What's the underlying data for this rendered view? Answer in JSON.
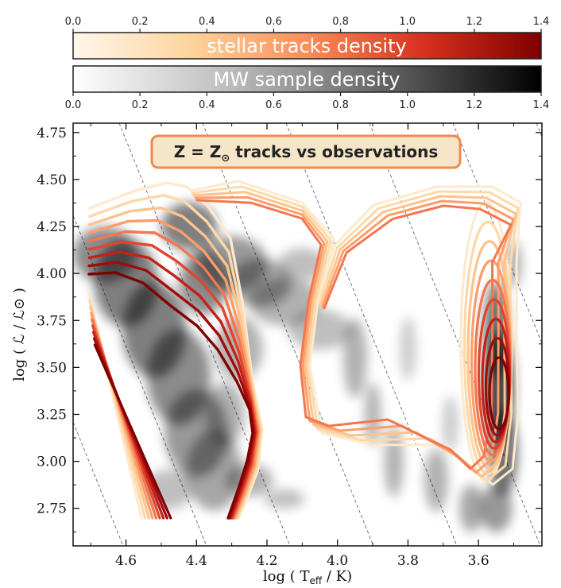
{
  "chart_data": {
    "type": "heatmap",
    "title": "Z = Z⊙ tracks vs observations",
    "annotation": {
      "main": "Z = Z",
      "sub": "⊙",
      "rest": " tracks vs observations",
      "box_color": "#f5e6c9",
      "edge_color": "#f08a4b"
    },
    "xlabel": {
      "pre": "log ( T",
      "sub": "eff",
      "post": " / K)"
    },
    "ylabel": "log ( ℒ / ℒ⊙ )",
    "xlim": [
      4.75,
      3.42
    ],
    "ylim": [
      2.55,
      4.8
    ],
    "x_ticks": [
      "4.6",
      "4.4",
      "4.2",
      "4.0",
      "3.8",
      "3.6"
    ],
    "y_ticks": [
      "2.75",
      "3.00",
      "3.25",
      "3.50",
      "3.75",
      "4.00",
      "4.25",
      "4.50",
      "4.75"
    ],
    "colorbars": [
      {
        "label": "stellar tracks density",
        "range": [
          0,
          1.4
        ],
        "ticks": [
          "0.0",
          "0.2",
          "0.4",
          "0.6",
          "0.8",
          "1.0",
          "1.2",
          "1.4"
        ],
        "colors": [
          "#fff7ec",
          "#fdd49e",
          "#fc8d59",
          "#d7301f",
          "#7f0000"
        ]
      },
      {
        "label": "MW sample density",
        "range": [
          0,
          1.4
        ],
        "ticks": [
          "0.0",
          "0.2",
          "0.4",
          "0.6",
          "0.8",
          "1.0",
          "1.2",
          "1.4"
        ],
        "colors": [
          "#ffffff",
          "#bdbdbd",
          "#636363",
          "#000000"
        ]
      }
    ],
    "contour_levels": [
      {
        "level": 0.1,
        "color": "#fee9cf"
      },
      {
        "level": 0.2,
        "color": "#fdd9a8"
      },
      {
        "level": 0.3,
        "color": "#fdc38d"
      },
      {
        "level": 0.45,
        "color": "#fc9d6a"
      },
      {
        "level": 0.6,
        "color": "#f3764f"
      },
      {
        "level": 0.8,
        "color": "#e0452f"
      },
      {
        "level": 1.0,
        "color": "#c5201a"
      },
      {
        "level": 1.2,
        "color": "#a10b0b"
      },
      {
        "level": 1.35,
        "color": "#7f0000"
      }
    ],
    "iso_radius_lines": "dashed grey diagonals"
  }
}
